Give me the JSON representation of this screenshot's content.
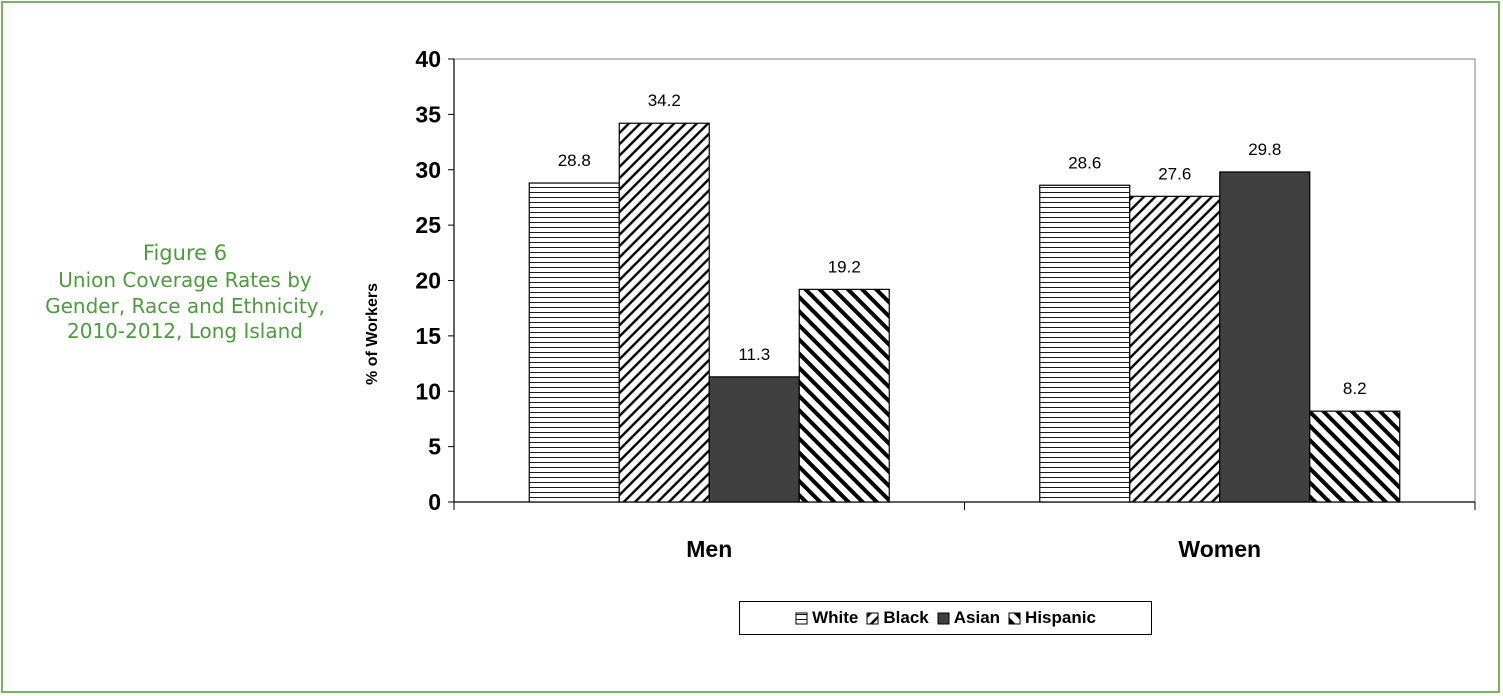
{
  "caption": {
    "figure": "Figure 6",
    "description": "Union Coverage Rates by Gender, Race and Ethnicity, 2010-2012, Long Island"
  },
  "colors": {
    "frame": "#7bb067",
    "caption_text": "#4f9a40",
    "asian_fill": "#404040"
  },
  "chart_data": {
    "type": "bar",
    "categories": [
      "Men",
      "Women"
    ],
    "series": [
      {
        "name": "White",
        "values": [
          28.8,
          28.6
        ],
        "pattern": "horizontal-lines"
      },
      {
        "name": "Black",
        "values": [
          34.2,
          27.6
        ],
        "pattern": "diagonal-lines-forward"
      },
      {
        "name": "Asian",
        "values": [
          11.3,
          29.8
        ],
        "pattern": "solid-dark"
      },
      {
        "name": "Hispanic",
        "values": [
          19.2,
          8.2
        ],
        "pattern": "diagonal-lines-backward"
      }
    ],
    "title": "",
    "xlabel": "",
    "ylabel": "% of Workers",
    "ylim": [
      0,
      40
    ],
    "yticks": [
      0,
      5,
      10,
      15,
      20,
      25,
      30,
      35,
      40
    ],
    "grid": false,
    "legend_position": "bottom"
  }
}
